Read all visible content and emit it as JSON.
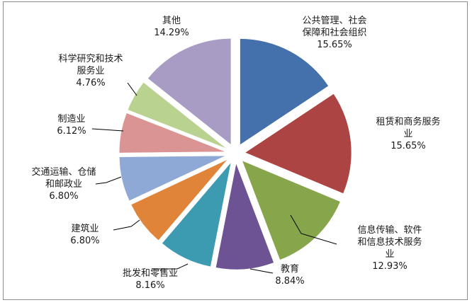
{
  "chart_data": {
    "type": "pie",
    "title": "",
    "slices": [
      {
        "lines": [
          "公共管理、社会",
          "保障和社会组织"
        ],
        "value": 15.65,
        "value_label": "15.65%",
        "color": "#4471ac"
      },
      {
        "lines": [
          "租赁和商务服务",
          "业"
        ],
        "value": 15.65,
        "value_label": "15.65%",
        "color": "#ad4444"
      },
      {
        "lines": [
          "信息传输、软件",
          "和信息技术服务",
          "业"
        ],
        "value": 12.93,
        "value_label": "12.93%",
        "color": "#87a64b"
      },
      {
        "lines": [
          "教育"
        ],
        "value": 8.84,
        "value_label": "8.84%",
        "color": "#6d5393"
      },
      {
        "lines": [
          "批发和零售业"
        ],
        "value": 8.16,
        "value_label": "8.16%",
        "color": "#3c9ab1"
      },
      {
        "lines": [
          "建筑业"
        ],
        "value": 6.8,
        "value_label": "6.80%",
        "color": "#e0843a"
      },
      {
        "lines": [
          "交通运输、仓储",
          "和邮政业"
        ],
        "value": 6.8,
        "value_label": "6.80%",
        "color": "#8fa9d7"
      },
      {
        "lines": [
          "制造业"
        ],
        "value": 6.12,
        "value_label": "6.12%",
        "color": "#d99493"
      },
      {
        "lines": [
          "科学研究和技术",
          "服务业"
        ],
        "value": 4.76,
        "value_label": "4.76%",
        "color": "#b9d28f"
      },
      {
        "lines": [
          "其他"
        ],
        "value": 14.29,
        "value_label": "14.29%",
        "color": "#a89cc4"
      }
    ]
  }
}
